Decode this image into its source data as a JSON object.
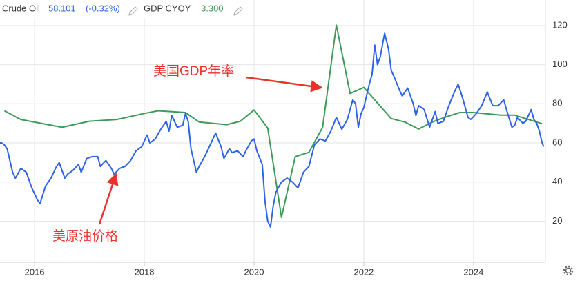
{
  "chart_data": {
    "type": "line",
    "xlim": [
      2015.37,
      2025.31
    ],
    "xticks": [
      2016,
      2018,
      2020,
      2022,
      2024
    ],
    "ylim": [
      -1,
      133
    ],
    "yticks": [
      20,
      40,
      60,
      80,
      100,
      120
    ],
    "y2lim": [
      -12.7,
      17.6
    ],
    "grid": true,
    "series": [
      {
        "name": "Crude Oil",
        "latest": "58.101",
        "change": "(-0.32%)",
        "color": "#2e63e6",
        "x": [
          2015.37,
          2015.4,
          2015.45,
          2015.5,
          2015.6,
          2015.65,
          2015.75,
          2015.85,
          2015.95,
          2016.05,
          2016.1,
          2016.2,
          2016.3,
          2016.4,
          2016.45,
          2016.55,
          2016.6,
          2016.7,
          2016.8,
          2016.85,
          2016.95,
          2017.05,
          2017.15,
          2017.2,
          2017.3,
          2017.4,
          2017.45,
          2017.55,
          2017.65,
          2017.75,
          2017.85,
          2017.95,
          2018.05,
          2018.1,
          2018.2,
          2018.3,
          2018.4,
          2018.45,
          2018.5,
          2018.6,
          2018.7,
          2018.75,
          2018.8,
          2018.85,
          2018.95,
          2019.0,
          2019.1,
          2019.2,
          2019.3,
          2019.4,
          2019.45,
          2019.55,
          2019.6,
          2019.7,
          2019.8,
          2019.85,
          2019.95,
          2020.0,
          2020.05,
          2020.15,
          2020.2,
          2020.25,
          2020.3,
          2020.35,
          2020.4,
          2020.5,
          2020.6,
          2020.7,
          2020.8,
          2020.9,
          2021.0,
          2021.1,
          2021.2,
          2021.3,
          2021.4,
          2021.5,
          2021.6,
          2021.7,
          2021.8,
          2021.85,
          2021.9,
          2021.95,
          2022.0,
          2022.1,
          2022.15,
          2022.2,
          2022.25,
          2022.3,
          2022.38,
          2022.45,
          2022.5,
          2022.55,
          2022.65,
          2022.7,
          2022.8,
          2022.9,
          2022.95,
          2023.0,
          2023.1,
          2023.2,
          2023.3,
          2023.35,
          2023.45,
          2023.55,
          2023.65,
          2023.72,
          2023.8,
          2023.9,
          2023.95,
          2024.05,
          2024.15,
          2024.25,
          2024.35,
          2024.45,
          2024.55,
          2024.6,
          2024.7,
          2024.75,
          2024.8,
          2024.9,
          2024.95,
          2025.05,
          2025.1,
          2025.15,
          2025.2,
          2025.25,
          2025.28
        ],
        "values": [
          60,
          60,
          59,
          57,
          45,
          42,
          47,
          45,
          37,
          31,
          29,
          38,
          42,
          48,
          50,
          42,
          44,
          46,
          49,
          45,
          52,
          53,
          53,
          48,
          51,
          47,
          44,
          47,
          48,
          51,
          56,
          58,
          64,
          60,
          62,
          67,
          71,
          66,
          74,
          68,
          69,
          75,
          71,
          57,
          45,
          48,
          53,
          59,
          65,
          58,
          52,
          57,
          55,
          56,
          53,
          56,
          61,
          62,
          56,
          49,
          30,
          20,
          17,
          28,
          35,
          40,
          42,
          40,
          37,
          45,
          48,
          59,
          62,
          61,
          66,
          73,
          67,
          72,
          82,
          80,
          68,
          75,
          78,
          90,
          95,
          110,
          100,
          104,
          116,
          108,
          97,
          94,
          87,
          84,
          88,
          80,
          74,
          79,
          77,
          68,
          76,
          70,
          71,
          79,
          86,
          90,
          83,
          73,
          72,
          75,
          79,
          86,
          79,
          79,
          82,
          77,
          68,
          69,
          73,
          70,
          71,
          77,
          72,
          70,
          66,
          60,
          58.101
        ]
      },
      {
        "name": "GDP CYOY",
        "latest": "3.300",
        "color": "#3e9a58",
        "axis": "y2",
        "x": [
          2015.45,
          2015.75,
          2016.5,
          2017.0,
          2017.5,
          2018.0,
          2018.25,
          2018.75,
          2019.0,
          2019.5,
          2019.75,
          2020.0,
          2020.25,
          2020.5,
          2020.75,
          2021.0,
          2021.25,
          2021.5,
          2021.75,
          2022.0,
          2022.5,
          2022.75,
          2023.0,
          2023.25,
          2023.5,
          2023.75,
          2024.0,
          2024.5,
          2024.75,
          2025.0,
          2025.25
        ],
        "values": [
          4.8,
          3.8,
          2.9,
          3.6,
          3.8,
          4.5,
          4.8,
          4.6,
          3.5,
          3.2,
          3.6,
          4.9,
          2.8,
          -7.5,
          -0.5,
          0.0,
          2.9,
          14.7,
          6.8,
          7.5,
          3.9,
          3.5,
          2.7,
          3.5,
          4.1,
          4.6,
          4.6,
          4.3,
          4.3,
          3.8,
          3.3
        ]
      }
    ],
    "annotations": [
      "美国GDP年率",
      "美原油价格"
    ]
  }
}
